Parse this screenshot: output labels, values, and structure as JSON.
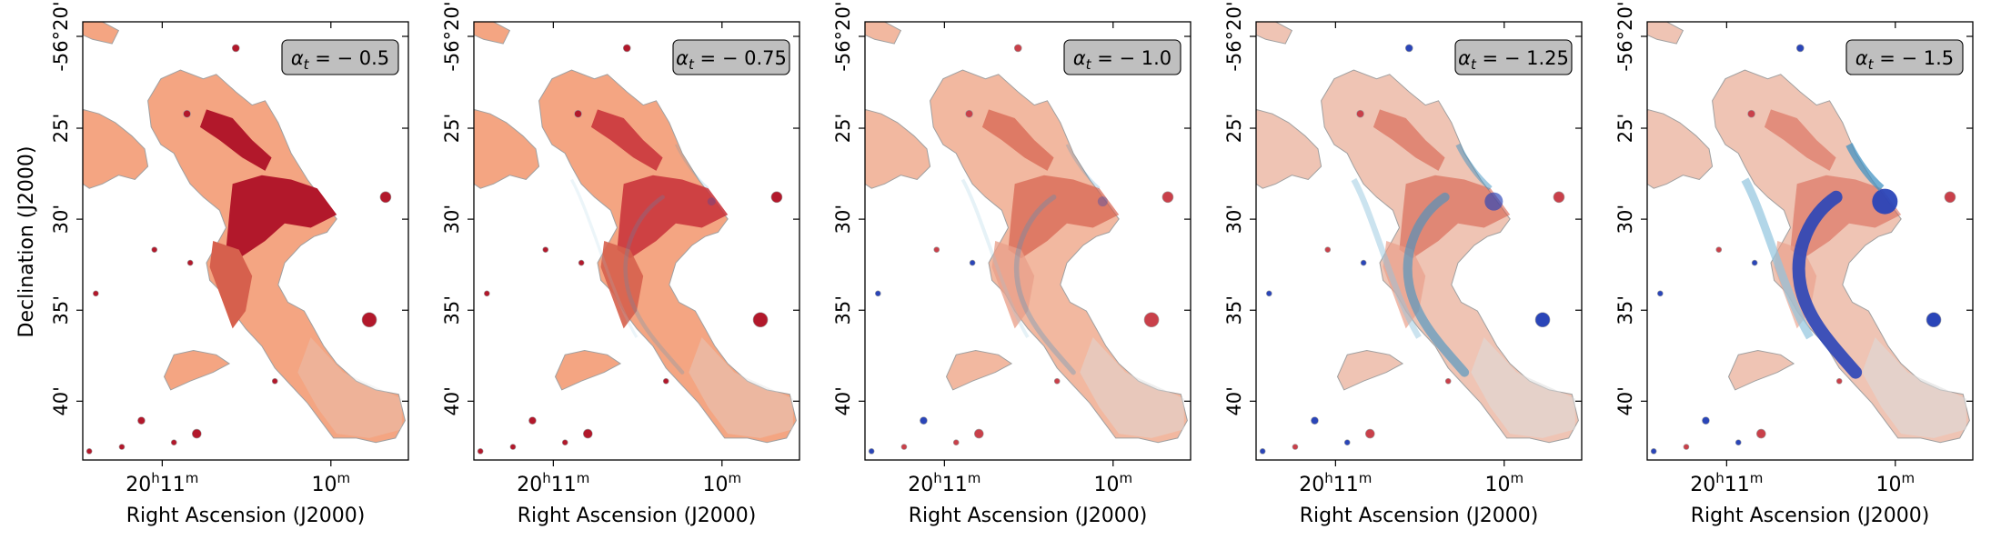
{
  "chart_data": {
    "type": "heatmap",
    "colormap": "coolwarm (diverging blue-grey-red)",
    "ylabel": "Declination (J2000)",
    "xlabel": "Right Ascension (J2000)",
    "x_ticks": [
      {
        "base": "20",
        "sup1": "h",
        "mid": "11",
        "sup2": "m"
      },
      {
        "base": "10",
        "sup1": "m",
        "mid": "",
        "sup2": ""
      }
    ],
    "y_ticks": [
      "-56°20'",
      "25'",
      "30'",
      "35'",
      "40'"
    ],
    "panels": [
      {
        "label_prefix": "α",
        "label_sub": "t",
        "label_value": " = − 0.5",
        "alpha_t": -0.5,
        "red_strength": 1.0,
        "blue_strength": 0.0
      },
      {
        "label_prefix": "α",
        "label_sub": "t",
        "label_value": " = − 0.75",
        "alpha_t": -0.75,
        "red_strength": 0.8,
        "blue_strength": 0.05
      },
      {
        "label_prefix": "α",
        "label_sub": "t",
        "label_value": " = − 1.0",
        "alpha_t": -1.0,
        "red_strength": 0.55,
        "blue_strength": 0.15
      },
      {
        "label_prefix": "α",
        "label_sub": "t",
        "label_value": " = − 1.25",
        "alpha_t": -1.25,
        "red_strength": 0.4,
        "blue_strength": 0.6
      },
      {
        "label_prefix": "α",
        "label_sub": "t",
        "label_value": " = − 1.5",
        "alpha_t": -1.5,
        "red_strength": 0.3,
        "blue_strength": 1.0
      }
    ],
    "colors": {
      "deep_red": "#b2182b",
      "red": "#d6604d",
      "light_red": "#f4a582",
      "pale": "#fddbc7",
      "neutral": "#dcdcdc",
      "light_blue": "#92c5de",
      "blue": "#4393c3",
      "deep_blue": "#2a45b8",
      "outline": "#a0a0a0",
      "label_box": "#bfbfbf"
    }
  }
}
